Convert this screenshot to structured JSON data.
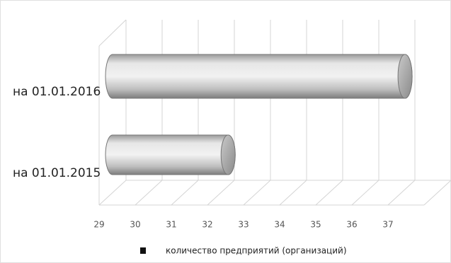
{
  "chart_data": {
    "type": "bar",
    "orientation": "horizontal",
    "categories": [
      "на 01.01.2016",
      "на 01.01.2015"
    ],
    "series": [
      {
        "name": "количество предприятий (организаций)",
        "color": "#c8c8c8",
        "values": [
          37.1,
          32.2
        ]
      }
    ],
    "xlim": [
      29,
      38
    ],
    "xticks": [
      29,
      30,
      31,
      32,
      33,
      34,
      35,
      36,
      37
    ],
    "grid": true
  }
}
